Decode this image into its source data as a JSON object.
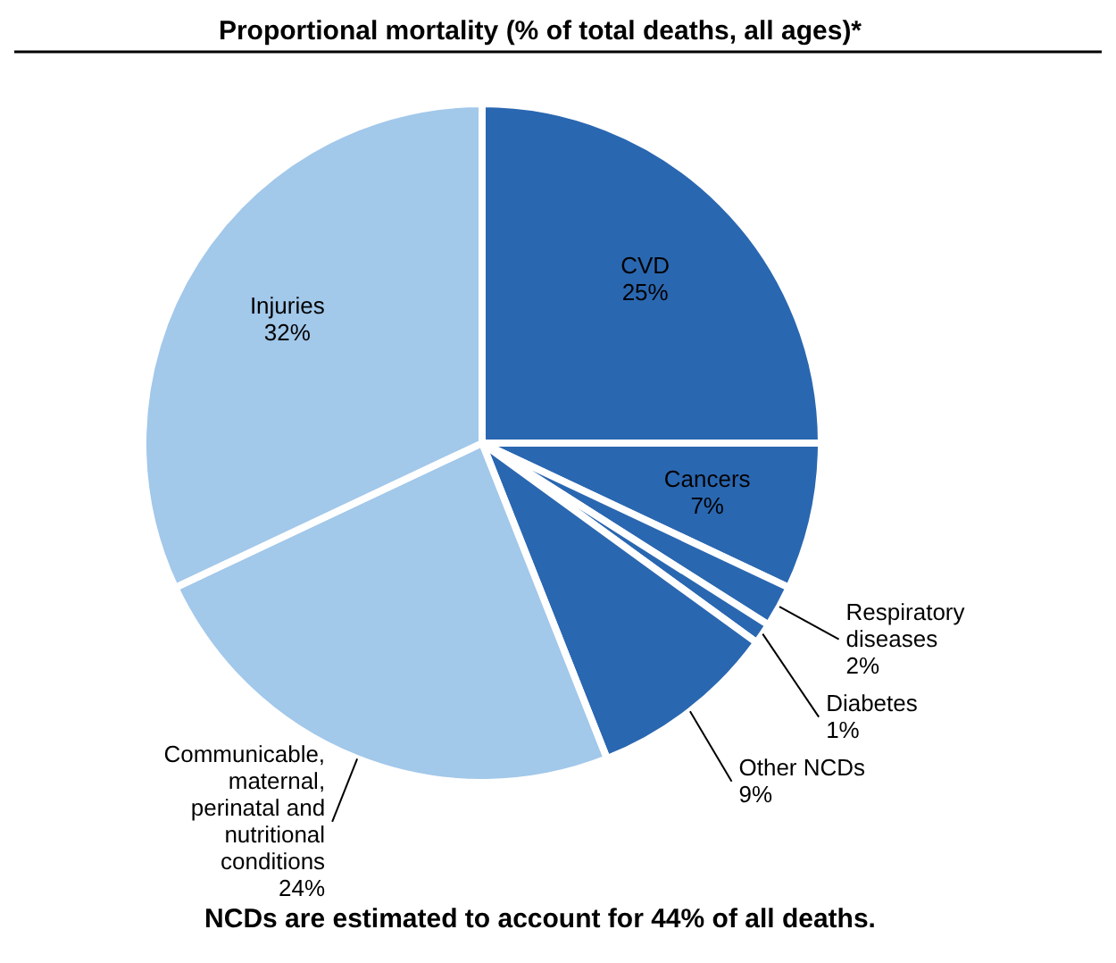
{
  "chart_data": {
    "type": "pie",
    "title": "Proportional mortality (% of total deaths, all ages)*",
    "categories": [
      "CVD",
      "Cancers",
      "Respiratory diseases",
      "Diabetes",
      "Other NCDs",
      "Communicable, maternal, perinatal and nutritional conditions",
      "Injuries"
    ],
    "values": [
      25,
      7,
      2,
      1,
      9,
      24,
      32
    ],
    "value_labels": [
      "25%",
      "7%",
      "2%",
      "1%",
      "9%",
      "24%",
      "32%"
    ],
    "colors": [
      "#2a67b1",
      "#2a67b1",
      "#2a67b1",
      "#2a67b1",
      "#2a67b1",
      "#a2c8ea",
      "#a2c8ea"
    ],
    "annotations": [
      "NCDs are estimated to account for 44% of all deaths."
    ]
  }
}
